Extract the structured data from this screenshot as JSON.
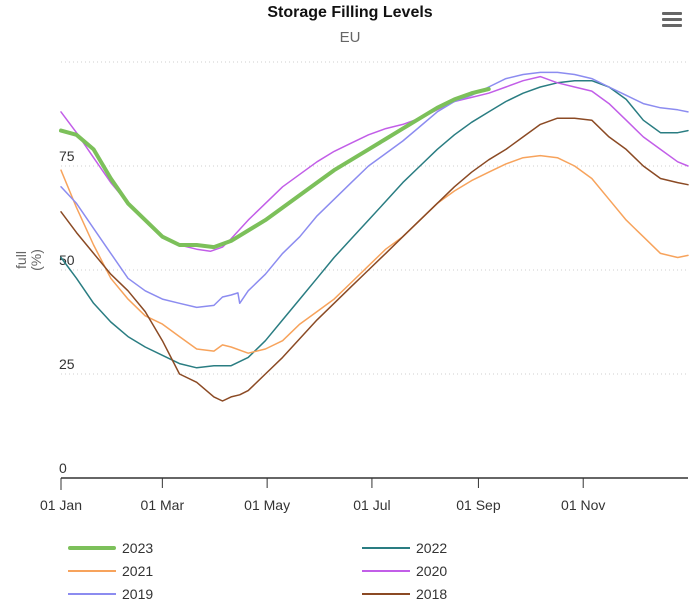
{
  "header": {
    "title": "Storage Filling Levels",
    "subtitle": "EU",
    "menu_icon": "hamburger-menu-icon"
  },
  "chart_data": {
    "type": "line",
    "title": "Storage Filling Levels",
    "subtitle": "EU",
    "xlabel": "",
    "ylabel": "full (%)",
    "ylabel_lines": [
      "full",
      "(%)"
    ],
    "ylim": [
      0,
      100
    ],
    "yticks": [
      0,
      25,
      50,
      75
    ],
    "ygrid": "dotted",
    "xlim_day_of_year": [
      1,
      366
    ],
    "xticks": [
      {
        "label": "01 Jan",
        "day": 1
      },
      {
        "label": "01 Mar",
        "day": 60
      },
      {
        "label": "01 May",
        "day": 121
      },
      {
        "label": "01 Jul",
        "day": 182
      },
      {
        "label": "01 Sep",
        "day": 244
      },
      {
        "label": "01 Nov",
        "day": 305
      }
    ],
    "legend_position": "bottom",
    "x_unit": "day of year",
    "series": [
      {
        "name": "2023",
        "color": "#7cc05a",
        "width": 4,
        "points": [
          [
            1,
            83.5
          ],
          [
            10,
            82.5
          ],
          [
            20,
            79
          ],
          [
            30,
            72
          ],
          [
            40,
            66
          ],
          [
            50,
            62
          ],
          [
            60,
            58
          ],
          [
            70,
            56
          ],
          [
            80,
            56
          ],
          [
            90,
            55.5
          ],
          [
            100,
            57
          ],
          [
            110,
            59.5
          ],
          [
            120,
            62
          ],
          [
            130,
            65
          ],
          [
            140,
            68
          ],
          [
            150,
            71
          ],
          [
            160,
            74
          ],
          [
            170,
            76.5
          ],
          [
            180,
            79
          ],
          [
            190,
            81.5
          ],
          [
            200,
            84
          ],
          [
            210,
            86.5
          ],
          [
            220,
            89
          ],
          [
            230,
            91
          ],
          [
            240,
            92.5
          ],
          [
            250,
            93.5
          ]
        ]
      },
      {
        "name": "2022",
        "color": "#2a7d82",
        "width": 1.5,
        "points": [
          [
            1,
            53
          ],
          [
            10,
            48
          ],
          [
            20,
            42
          ],
          [
            30,
            37.5
          ],
          [
            40,
            34
          ],
          [
            50,
            31.5
          ],
          [
            60,
            29.5
          ],
          [
            70,
            27.5
          ],
          [
            80,
            26.5
          ],
          [
            90,
            27
          ],
          [
            100,
            27
          ],
          [
            110,
            29
          ],
          [
            120,
            33
          ],
          [
            130,
            38
          ],
          [
            140,
            43
          ],
          [
            150,
            48
          ],
          [
            160,
            53
          ],
          [
            170,
            57.5
          ],
          [
            180,
            62
          ],
          [
            190,
            66.5
          ],
          [
            200,
            71
          ],
          [
            210,
            75
          ],
          [
            220,
            79
          ],
          [
            230,
            82.5
          ],
          [
            240,
            85.5
          ],
          [
            250,
            88
          ],
          [
            260,
            90.5
          ],
          [
            270,
            92.5
          ],
          [
            280,
            94
          ],
          [
            290,
            95
          ],
          [
            300,
            95.5
          ],
          [
            310,
            95.5
          ],
          [
            320,
            94
          ],
          [
            330,
            91
          ],
          [
            340,
            86
          ],
          [
            350,
            83
          ],
          [
            360,
            83
          ],
          [
            366,
            83.5
          ]
        ]
      },
      {
        "name": "2021",
        "color": "#f7a35c",
        "width": 1.5,
        "points": [
          [
            1,
            74
          ],
          [
            10,
            65
          ],
          [
            20,
            56
          ],
          [
            30,
            48
          ],
          [
            40,
            43
          ],
          [
            50,
            39
          ],
          [
            60,
            37
          ],
          [
            70,
            34
          ],
          [
            80,
            31
          ],
          [
            90,
            30.5
          ],
          [
            95,
            32
          ],
          [
            100,
            31.5
          ],
          [
            110,
            30
          ],
          [
            120,
            31
          ],
          [
            130,
            33
          ],
          [
            140,
            37
          ],
          [
            150,
            40
          ],
          [
            160,
            43
          ],
          [
            170,
            47
          ],
          [
            180,
            51
          ],
          [
            190,
            55
          ],
          [
            200,
            58
          ],
          [
            210,
            62
          ],
          [
            220,
            66
          ],
          [
            230,
            69
          ],
          [
            240,
            71.5
          ],
          [
            250,
            73.5
          ],
          [
            260,
            75.5
          ],
          [
            270,
            77
          ],
          [
            280,
            77.5
          ],
          [
            290,
            77
          ],
          [
            300,
            75
          ],
          [
            310,
            72
          ],
          [
            320,
            67
          ],
          [
            330,
            62
          ],
          [
            340,
            58
          ],
          [
            350,
            54
          ],
          [
            360,
            53
          ],
          [
            366,
            53.5
          ]
        ]
      },
      {
        "name": "2020",
        "color": "#c25ee8",
        "width": 1.5,
        "points": [
          [
            1,
            88
          ],
          [
            10,
            83
          ],
          [
            20,
            77
          ],
          [
            30,
            71
          ],
          [
            40,
            66
          ],
          [
            50,
            62
          ],
          [
            60,
            58
          ],
          [
            70,
            56
          ],
          [
            80,
            55
          ],
          [
            88,
            54.5
          ],
          [
            95,
            55.5
          ],
          [
            100,
            57.5
          ],
          [
            110,
            62
          ],
          [
            120,
            66
          ],
          [
            130,
            70
          ],
          [
            140,
            73
          ],
          [
            150,
            76
          ],
          [
            160,
            78.5
          ],
          [
            170,
            80.5
          ],
          [
            180,
            82.5
          ],
          [
            190,
            84
          ],
          [
            200,
            85
          ],
          [
            210,
            86.5
          ],
          [
            220,
            88.5
          ],
          [
            230,
            90.5
          ],
          [
            240,
            91.5
          ],
          [
            250,
            92.5
          ],
          [
            260,
            94
          ],
          [
            270,
            95.5
          ],
          [
            280,
            96.5
          ],
          [
            290,
            95
          ],
          [
            300,
            94
          ],
          [
            310,
            93
          ],
          [
            320,
            90
          ],
          [
            330,
            86
          ],
          [
            340,
            82
          ],
          [
            350,
            79
          ],
          [
            360,
            76
          ],
          [
            366,
            75
          ]
        ]
      },
      {
        "name": "2019",
        "color": "#8c8cf0",
        "width": 1.5,
        "points": [
          [
            1,
            70
          ],
          [
            10,
            66
          ],
          [
            20,
            60
          ],
          [
            30,
            54
          ],
          [
            40,
            48
          ],
          [
            50,
            45
          ],
          [
            60,
            43
          ],
          [
            70,
            42
          ],
          [
            80,
            41
          ],
          [
            90,
            41.5
          ],
          [
            95,
            43.5
          ],
          [
            100,
            44
          ],
          [
            104,
            44.5
          ],
          [
            105,
            42
          ],
          [
            110,
            45
          ],
          [
            120,
            49
          ],
          [
            130,
            54
          ],
          [
            140,
            58
          ],
          [
            150,
            63
          ],
          [
            160,
            67
          ],
          [
            170,
            71
          ],
          [
            180,
            75
          ],
          [
            190,
            78
          ],
          [
            200,
            81
          ],
          [
            210,
            84.5
          ],
          [
            220,
            88
          ],
          [
            230,
            90.5
          ],
          [
            240,
            92
          ],
          [
            250,
            94
          ],
          [
            260,
            96
          ],
          [
            270,
            97
          ],
          [
            280,
            97.5
          ],
          [
            290,
            97.5
          ],
          [
            300,
            97
          ],
          [
            310,
            96
          ],
          [
            320,
            94
          ],
          [
            330,
            92
          ],
          [
            340,
            90
          ],
          [
            350,
            89
          ],
          [
            360,
            88.5
          ],
          [
            366,
            88
          ]
        ]
      },
      {
        "name": "2018",
        "color": "#8b4a24",
        "width": 1.5,
        "points": [
          [
            1,
            64
          ],
          [
            10,
            59
          ],
          [
            20,
            54
          ],
          [
            30,
            49
          ],
          [
            40,
            45
          ],
          [
            50,
            40
          ],
          [
            60,
            33
          ],
          [
            70,
            25
          ],
          [
            80,
            23
          ],
          [
            90,
            19.5
          ],
          [
            95,
            18.5
          ],
          [
            100,
            19.5
          ],
          [
            105,
            20
          ],
          [
            110,
            21
          ],
          [
            120,
            25
          ],
          [
            130,
            29
          ],
          [
            140,
            33.5
          ],
          [
            150,
            38
          ],
          [
            160,
            42
          ],
          [
            170,
            46
          ],
          [
            180,
            50
          ],
          [
            190,
            54
          ],
          [
            200,
            58
          ],
          [
            210,
            62
          ],
          [
            220,
            66
          ],
          [
            230,
            70
          ],
          [
            240,
            73.5
          ],
          [
            250,
            76.5
          ],
          [
            260,
            79
          ],
          [
            270,
            82
          ],
          [
            280,
            85
          ],
          [
            290,
            86.5
          ],
          [
            300,
            86.5
          ],
          [
            310,
            86
          ],
          [
            320,
            82
          ],
          [
            330,
            79
          ],
          [
            340,
            75
          ],
          [
            350,
            72
          ],
          [
            360,
            71
          ],
          [
            366,
            70.5
          ]
        ]
      }
    ]
  },
  "legend": {
    "items": [
      {
        "label": "2023",
        "color": "#7cc05a"
      },
      {
        "label": "2022",
        "color": "#2a7d82"
      },
      {
        "label": "2021",
        "color": "#f7a35c"
      },
      {
        "label": "2020",
        "color": "#c25ee8"
      },
      {
        "label": "2019",
        "color": "#8c8cf0"
      },
      {
        "label": "2018",
        "color": "#8b4a24"
      }
    ]
  }
}
